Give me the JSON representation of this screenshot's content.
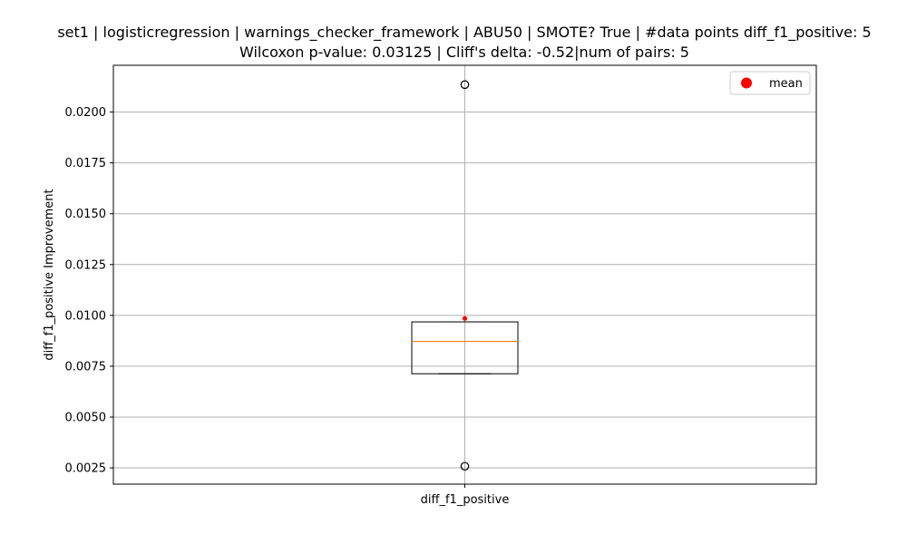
{
  "chart_data": {
    "type": "boxplot",
    "title": "set1 | logisticregression | warnings_checker_framework | ABU50 | SMOTE? True | #data points diff_f1_positive: 5",
    "subtitle": "Wilcoxon p-value: 0.03125 | Cliff's delta: -0.52|num of pairs: 5",
    "xlabel": "",
    "ylabel": "diff_f1_positive Improvement",
    "categories": [
      "diff_f1_positive"
    ],
    "ylim": [
      0.0017,
      0.0223
    ],
    "yticks": [
      0.0025,
      0.005,
      0.0075,
      0.01,
      0.0125,
      0.015,
      0.0175,
      0.02
    ],
    "ytick_labels": [
      "0.0025",
      "0.0050",
      "0.0075",
      "0.0100",
      "0.0125",
      "0.0150",
      "0.0175",
      "0.0200"
    ],
    "grid": true,
    "legend": {
      "position": "top-right",
      "entries": [
        "mean"
      ]
    },
    "box": {
      "q1": 0.00713,
      "median": 0.00872,
      "q3": 0.00968,
      "whisker_low": 0.00713,
      "whisker_high": 0.00968,
      "mean": 0.00985,
      "outliers": [
        0.02135,
        0.00258
      ]
    },
    "colors": {
      "median": "#ff7f0e",
      "mean": "#ff0000",
      "grid": "#b0b0b0",
      "box": "#000000"
    }
  }
}
